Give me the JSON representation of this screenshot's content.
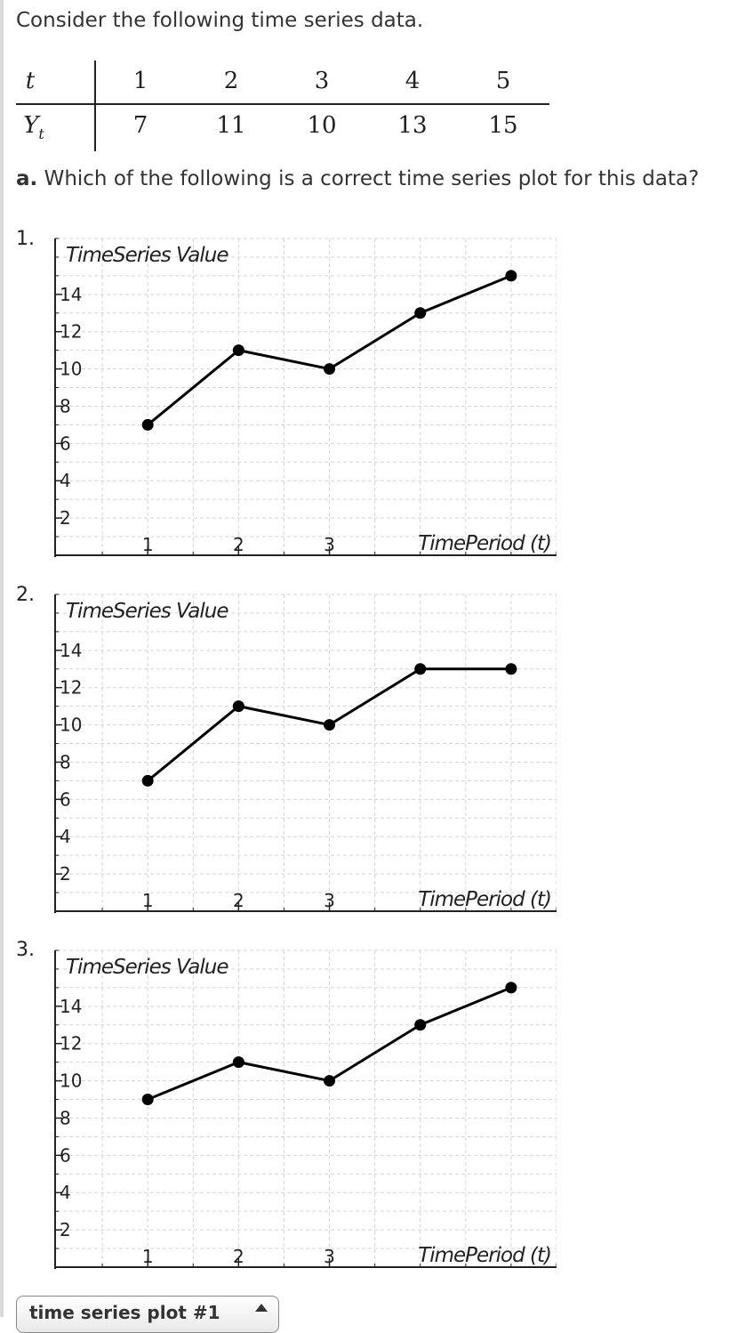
{
  "intro": "Consider the following time series data.",
  "table": {
    "row_headers": [
      "t",
      "Y",
      "t"
    ],
    "t": [
      "1",
      "2",
      "3",
      "4",
      "5"
    ],
    "y": [
      "7",
      "11",
      "10",
      "13",
      "15"
    ]
  },
  "question": {
    "label": "a.",
    "text": " Which of the following is a correct time series plot for this data?"
  },
  "options": [
    "1.",
    "2.",
    "3."
  ],
  "chart_data": [
    {
      "type": "line",
      "x": [
        1,
        2,
        3,
        4,
        5
      ],
      "y": [
        7,
        11,
        10,
        13,
        15
      ],
      "ylabel": "TimeSeries Value",
      "xlabel": "TimePeriod (t)",
      "xticks": [
        "1",
        "2",
        "3"
      ],
      "yticks": [
        "2",
        "4",
        "6",
        "8",
        "10",
        "12",
        "14"
      ],
      "xlim": [
        0,
        5.5
      ],
      "ylim": [
        0,
        17
      ],
      "grid": true
    },
    {
      "type": "line",
      "x": [
        1,
        2,
        3,
        4,
        5
      ],
      "y": [
        7,
        11,
        10,
        13,
        13
      ],
      "ylabel": "TimeSeries Value",
      "xlabel": "TimePeriod (t)",
      "xticks": [
        "1",
        "2",
        "3"
      ],
      "yticks": [
        "2",
        "4",
        "6",
        "8",
        "10",
        "12",
        "14"
      ],
      "xlim": [
        0,
        5.5
      ],
      "ylim": [
        0,
        17
      ],
      "grid": true
    },
    {
      "type": "line",
      "x": [
        1,
        2,
        3,
        4,
        5
      ],
      "y": [
        9,
        11,
        10,
        13,
        15
      ],
      "ylabel": "TimeSeries Value",
      "xlabel": "TimePeriod (t)",
      "xticks": [
        "1",
        "2",
        "3"
      ],
      "yticks": [
        "2",
        "4",
        "6",
        "8",
        "10",
        "12",
        "14"
      ],
      "xlim": [
        0,
        5.5
      ],
      "ylim": [
        0,
        17
      ],
      "grid": true
    }
  ],
  "dropdown": {
    "value": "time series plot #1"
  }
}
